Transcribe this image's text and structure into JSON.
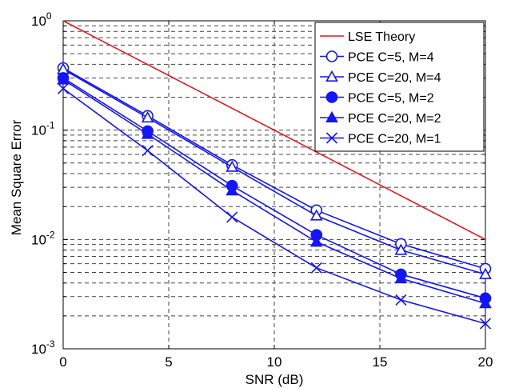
{
  "chart_data": {
    "type": "line",
    "xlabel": "SNR (dB)",
    "ylabel": "Mean Square Error",
    "x_scale": "linear",
    "y_scale": "log",
    "xlim": [
      0,
      20
    ],
    "ylim": [
      0.001,
      1
    ],
    "grid": true,
    "legend_position": "top-right",
    "x_ticks": [
      0,
      5,
      10,
      15,
      20
    ],
    "y_ticks": [
      {
        "value": 1,
        "base": "10",
        "exp": "0"
      },
      {
        "value": 0.1,
        "base": "10",
        "exp": "-1"
      },
      {
        "value": 0.01,
        "base": "10",
        "exp": "-2"
      },
      {
        "value": 0.001,
        "base": "10",
        "exp": "-3"
      }
    ],
    "series": [
      {
        "name": "LSE Theory",
        "color": "#e8141c",
        "marker": "none",
        "x": [
          0,
          20
        ],
        "y": [
          1.0,
          0.01
        ]
      },
      {
        "name": "PCE C=5, M=4",
        "color": "#1414ff",
        "marker": "circle-open",
        "x": [
          0,
          4,
          8,
          12,
          16,
          20
        ],
        "y": [
          0.37,
          0.135,
          0.048,
          0.0185,
          0.0091,
          0.0054
        ]
      },
      {
        "name": "PCE C=20, M=4",
        "color": "#1414ff",
        "marker": "triangle-open",
        "x": [
          0,
          4,
          8,
          12,
          16,
          20
        ],
        "y": [
          0.36,
          0.13,
          0.046,
          0.0165,
          0.008,
          0.0048
        ]
      },
      {
        "name": "PCE C=5, M=2",
        "color": "#1414ff",
        "marker": "circle-filled",
        "x": [
          0,
          4,
          8,
          12,
          16,
          20
        ],
        "y": [
          0.3,
          0.098,
          0.031,
          0.011,
          0.0048,
          0.0029
        ]
      },
      {
        "name": "PCE C=20, M=2",
        "color": "#1414ff",
        "marker": "triangle-filled",
        "x": [
          0,
          4,
          8,
          12,
          16,
          20
        ],
        "y": [
          0.29,
          0.092,
          0.028,
          0.0095,
          0.0044,
          0.0026
        ]
      },
      {
        "name": "PCE C=20, M=1",
        "color": "#1414ff",
        "marker": "x",
        "x": [
          0,
          4,
          8,
          12,
          16,
          20
        ],
        "y": [
          0.24,
          0.065,
          0.016,
          0.0055,
          0.0028,
          0.0017
        ]
      }
    ]
  }
}
